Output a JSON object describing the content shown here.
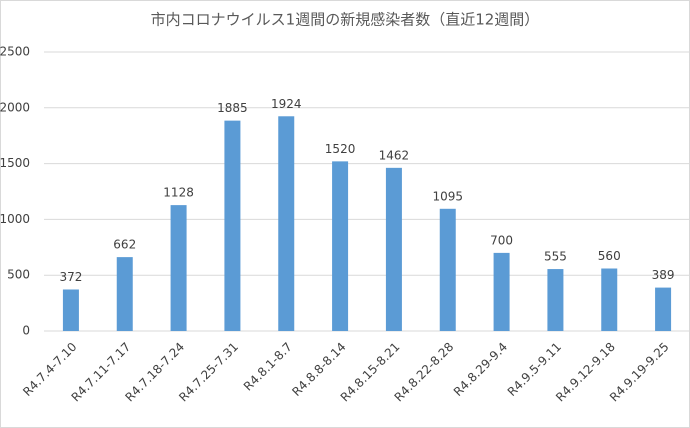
{
  "chart_data": {
    "type": "bar",
    "title": "市内コロナウイルス1週間の新規感染者数（直近12週間）",
    "categories": [
      "R4.7.4-7.10",
      "R4.7.11-7.17",
      "R4.7.18-7.24",
      "R4.7.25-7.31",
      "R4.8.1-8.7",
      "R4.8.8-8.14",
      "R4.8.15-8.21",
      "R4.8.22-8.28",
      "R4.8.29-9.4",
      "R4.9.5-9.11",
      "R4.9.12-9.18",
      "R4.9.19-9.25"
    ],
    "values": [
      372,
      662,
      1128,
      1885,
      1924,
      1520,
      1462,
      1095,
      700,
      555,
      560,
      389
    ],
    "color": "#5b9bd5",
    "ylim": [
      0,
      2500
    ],
    "yticks": [
      0,
      500,
      1000,
      1500,
      2000,
      2500
    ],
    "grid": true
  }
}
